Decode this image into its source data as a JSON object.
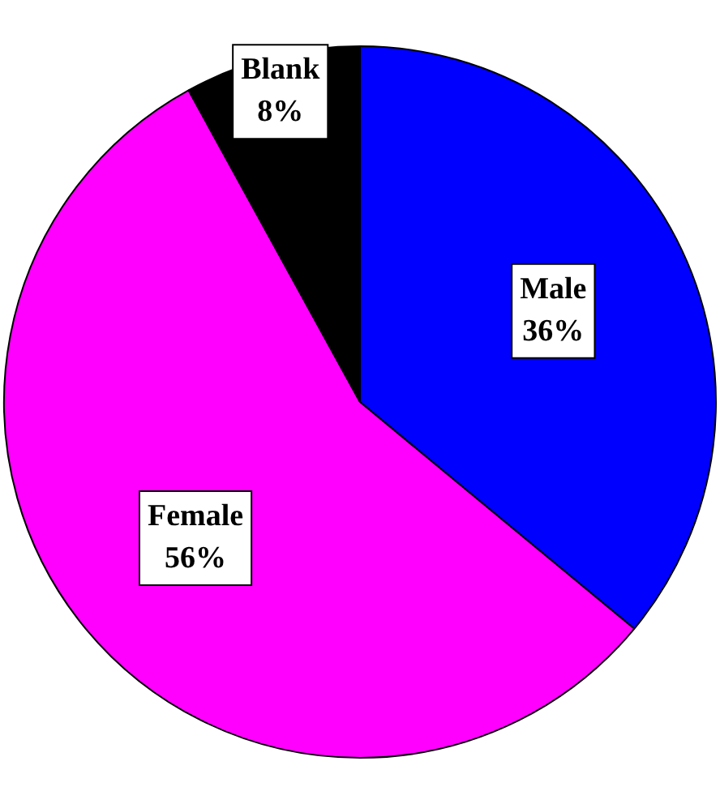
{
  "chart_data": {
    "type": "pie",
    "categories": [
      "Male",
      "Female",
      "Blank"
    ],
    "values": [
      36,
      56,
      8
    ],
    "colors": [
      "#0000ff",
      "#ff00ff",
      "#000000"
    ],
    "value_labels": [
      "36%",
      "56%",
      "8%"
    ],
    "legend": false
  }
}
